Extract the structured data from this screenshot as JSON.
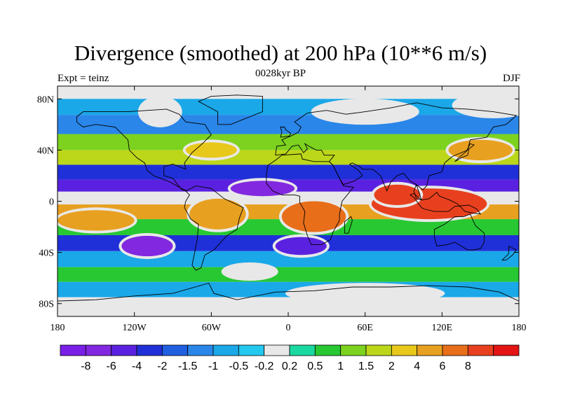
{
  "title": "Divergence (smoothed) at 200 hPa (10**6 m/s)",
  "left_label": "Expt = teinz",
  "center_label": "0028kyr BP",
  "right_label": "DJF",
  "lat_ticks": [
    {
      "label": "80N",
      "lat": 80
    },
    {
      "label": "40N",
      "lat": 40
    },
    {
      "label": "0",
      "lat": 0
    },
    {
      "label": "40S",
      "lat": -40
    },
    {
      "label": "80S",
      "lat": -80
    }
  ],
  "lon_ticks": [
    {
      "label": "180",
      "lon": -180
    },
    {
      "label": "120W",
      "lon": -120
    },
    {
      "label": "60W",
      "lon": -60
    },
    {
      "label": "0",
      "lon": 0
    },
    {
      "label": "60E",
      "lon": 60
    },
    {
      "label": "120E",
      "lon": 120
    },
    {
      "label": "180",
      "lon": 180
    }
  ],
  "colorbar": {
    "colors": [
      "#7a1fe6",
      "#8228e0",
      "#5a22e0",
      "#2030d8",
      "#1f5fe0",
      "#2a86e8",
      "#1aa8e8",
      "#22c8ee",
      "#e8e8e8",
      "#1ad9a0",
      "#28c832",
      "#7cd21e",
      "#bcd61a",
      "#e8c81a",
      "#e8a020",
      "#e86e1a",
      "#e8401e",
      "#e41414"
    ],
    "labels": [
      "-8",
      "-6",
      "-4",
      "-2",
      "-1.5",
      "-1",
      "-0.5",
      "-0.2",
      "0.2",
      "0.5",
      "1",
      "1.5",
      "2",
      "4",
      "6",
      "8"
    ]
  },
  "field_bands": [
    {
      "lat": 85,
      "level": 8
    },
    {
      "lat": 75,
      "level": 6
    },
    {
      "lat": 60,
      "level": 5
    },
    {
      "lat": 45,
      "level": 11
    },
    {
      "lat": 35,
      "level": 12
    },
    {
      "lat": 22,
      "level": 3
    },
    {
      "lat": 12,
      "level": 2
    },
    {
      "lat": 3,
      "level": 8
    },
    {
      "lat": -8,
      "level": 14
    },
    {
      "lat": -20,
      "level": 10
    },
    {
      "lat": -33,
      "level": 3
    },
    {
      "lat": -45,
      "level": 6
    },
    {
      "lat": -58,
      "level": 10
    },
    {
      "lat": -68,
      "level": 6
    },
    {
      "lat": -82,
      "level": 8
    }
  ],
  "field_blobs": [
    {
      "lon": 110,
      "lat": -2,
      "rlon": 45,
      "rlat": 12,
      "level": 16
    },
    {
      "lon": 85,
      "lat": 5,
      "rlon": 18,
      "rlat": 8,
      "level": 16
    },
    {
      "lon": 20,
      "lat": -12,
      "rlon": 25,
      "rlat": 12,
      "level": 15
    },
    {
      "lon": -55,
      "lat": -10,
      "rlon": 22,
      "rlat": 12,
      "level": 14
    },
    {
      "lon": -150,
      "lat": -15,
      "rlon": 30,
      "rlat": 8,
      "level": 14
    },
    {
      "lon": 150,
      "lat": 40,
      "rlon": 25,
      "rlat": 8,
      "level": 14
    },
    {
      "lon": -60,
      "lat": 40,
      "rlon": 20,
      "rlat": 6,
      "level": 13
    },
    {
      "lon": -110,
      "lat": -35,
      "rlon": 20,
      "rlat": 8,
      "level": 1
    },
    {
      "lon": 10,
      "lat": -35,
      "rlon": 20,
      "rlat": 7,
      "level": 2
    },
    {
      "lon": -20,
      "lat": 10,
      "rlon": 25,
      "rlat": 6,
      "level": 1
    },
    {
      "lon": -100,
      "lat": 70,
      "rlon": 15,
      "rlat": 10,
      "level": 8
    },
    {
      "lon": 60,
      "lat": 70,
      "rlon": 40,
      "rlat": 8,
      "level": 8
    },
    {
      "lon": 160,
      "lat": 75,
      "rlon": 30,
      "rlat": 8,
      "level": 8
    },
    {
      "lon": -30,
      "lat": -55,
      "rlon": 20,
      "rlat": 5,
      "level": 8
    },
    {
      "lon": 60,
      "lat": -72,
      "rlon": 60,
      "rlat": 6,
      "level": 8
    }
  ]
}
